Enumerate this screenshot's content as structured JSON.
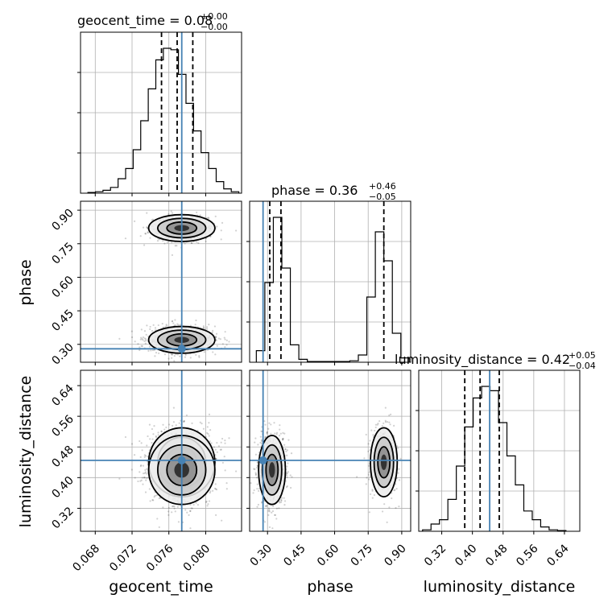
{
  "chart_data": {
    "type": "corner",
    "parameters": [
      "geocent_time",
      "phase",
      "luminosity_distance"
    ],
    "truths": {
      "geocent_time": 0.0774,
      "phase": 0.28,
      "luminosity_distance": 0.445
    },
    "ranges": {
      "geocent_time": [
        0.0664,
        0.0839
      ],
      "phase": [
        0.22,
        0.94
      ],
      "luminosity_distance": [
        0.26,
        0.68
      ]
    },
    "ticks": {
      "geocent_time": [
        "0.068",
        "0.072",
        "0.076",
        "0.080"
      ],
      "phase": [
        "0.30",
        "0.45",
        "0.60",
        "0.75",
        "0.90"
      ],
      "luminosity_distance": [
        "0.32",
        "0.40",
        "0.48",
        "0.56",
        "0.64"
      ]
    },
    "titles": [
      {
        "label": "geocent_time = 0.08",
        "plus": "+0.00",
        "minus": "−0.00"
      },
      {
        "label": "phase = 0.36",
        "plus": "+0.46",
        "minus": "−0.05"
      },
      {
        "label": "luminosity_distance = 0.42",
        "plus": "+0.05",
        "minus": "−0.04"
      }
    ],
    "quantiles": {
      "geocent_time": [
        0.0752,
        0.0769,
        0.0786
      ],
      "phase": [
        0.31,
        0.36,
        0.82
      ],
      "luminosity_distance": [
        0.38,
        0.42,
        0.47
      ]
    },
    "histograms": {
      "geocent_time": [
        0.005,
        0.01,
        0.02,
        0.04,
        0.1,
        0.17,
        0.3,
        0.5,
        0.72,
        0.92,
        1.0,
        0.99,
        0.82,
        0.62,
        0.43,
        0.28,
        0.17,
        0.08,
        0.03,
        0.01
      ],
      "phase": [
        0.08,
        0.55,
        1.0,
        0.65,
        0.12,
        0.02,
        0.005,
        0.005,
        0.005,
        0.005,
        0.005,
        0.01,
        0.05,
        0.45,
        0.9,
        0.7,
        0.2,
        0.03
      ],
      "luminosity_distance": [
        0.01,
        0.05,
        0.08,
        0.22,
        0.45,
        0.72,
        0.92,
        1.0,
        0.97,
        0.75,
        0.52,
        0.32,
        0.14,
        0.08,
        0.03,
        0.01,
        0.005
      ]
    },
    "histogram_starts": {
      "geocent_time": 0.0672,
      "phase": 0.25,
      "luminosity_distance": 0.27
    },
    "histogram_widths": {
      "geocent_time": 0.00082,
      "phase": 0.038,
      "luminosity_distance": 0.022
    },
    "modes": [
      {
        "geocent_time": 0.0774,
        "phase": 0.82,
        "luminosity_distance": 0.44,
        "weight": 0.35
      },
      {
        "geocent_time": 0.0774,
        "phase": 0.32,
        "luminosity_distance": 0.42,
        "weight": 0.65
      }
    ],
    "sigmas": {
      "geocent_time": 0.0018,
      "phase": 0.03,
      "luminosity_distance": 0.045
    },
    "xlabel": "",
    "ylabel": "",
    "grid": true
  }
}
